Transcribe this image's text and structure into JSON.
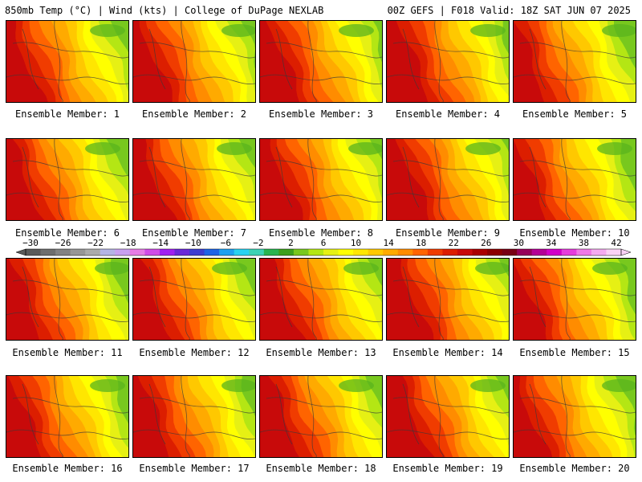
{
  "header": {
    "left": "850mb Temp (°C) | Wind (kts) | College of DuPage NEXLAB",
    "right": "00Z GEFS | F018 Valid: 18Z SAT JUN 07 2025"
  },
  "members": [
    {
      "label": "Ensemble Member: 1",
      "icon": "temperature-map"
    },
    {
      "label": "Ensemble Member: 2",
      "icon": "temperature-map"
    },
    {
      "label": "Ensemble Member: 3",
      "icon": "temperature-map"
    },
    {
      "label": "Ensemble Member: 4",
      "icon": "temperature-map"
    },
    {
      "label": "Ensemble Member: 5",
      "icon": "temperature-map"
    },
    {
      "label": "Ensemble Member: 6",
      "icon": "temperature-map"
    },
    {
      "label": "Ensemble Member: 7",
      "icon": "temperature-map"
    },
    {
      "label": "Ensemble Member: 8",
      "icon": "temperature-map"
    },
    {
      "label": "Ensemble Member: 9",
      "icon": "temperature-map"
    },
    {
      "label": "Ensemble Member: 10",
      "icon": "temperature-map"
    },
    {
      "label": "Ensemble Member: 11",
      "icon": "temperature-map"
    },
    {
      "label": "Ensemble Member: 12",
      "icon": "temperature-map"
    },
    {
      "label": "Ensemble Member: 13",
      "icon": "temperature-map"
    },
    {
      "label": "Ensemble Member: 14",
      "icon": "temperature-map"
    },
    {
      "label": "Ensemble Member: 15",
      "icon": "temperature-map"
    },
    {
      "label": "Ensemble Member: 16",
      "icon": "temperature-map"
    },
    {
      "label": "Ensemble Member: 17",
      "icon": "temperature-map"
    },
    {
      "label": "Ensemble Member: 18",
      "icon": "temperature-map"
    },
    {
      "label": "Ensemble Member: 19",
      "icon": "temperature-map"
    },
    {
      "label": "Ensemble Member: 20",
      "icon": "temperature-map"
    }
  ],
  "colorbar": {
    "labels": [
      "−30",
      "−26",
      "−22",
      "−18",
      "−14",
      "−10",
      "−6",
      "−2",
      "2",
      "6",
      "10",
      "14",
      "18",
      "22",
      "26",
      "30",
      "34",
      "38",
      "42"
    ],
    "colors": [
      "#5a5a5a",
      "#6e6e6e",
      "#828282",
      "#969696",
      "#aaaaaa",
      "#b4b4e6",
      "#c8a0f0",
      "#e67ce6",
      "#d04ce8",
      "#a020f0",
      "#6a28d8",
      "#3c3cd0",
      "#1e64e6",
      "#1ea0f0",
      "#28d2f0",
      "#3cd2b4",
      "#28b450",
      "#3ca01e",
      "#78c81e",
      "#b4e614",
      "#e6f014",
      "#ffff00",
      "#ffe600",
      "#ffc800",
      "#ffaa00",
      "#ff8c00",
      "#ff6400",
      "#f03c00",
      "#dc1e00",
      "#c80a0a",
      "#aa0000",
      "#8c0000",
      "#780014",
      "#96005a",
      "#b40096",
      "#d200c8",
      "#e63cdc",
      "#f078e6",
      "#f5aaf0",
      "#fad2f5"
    ]
  },
  "field_colors": [
    "#c80a0a",
    "#dc1e00",
    "#f03c00",
    "#ff6400",
    "#ff8c00",
    "#ffaa00",
    "#ffc800",
    "#ffe600",
    "#ffff00",
    "#e6f014",
    "#b4e614",
    "#78c81e"
  ]
}
